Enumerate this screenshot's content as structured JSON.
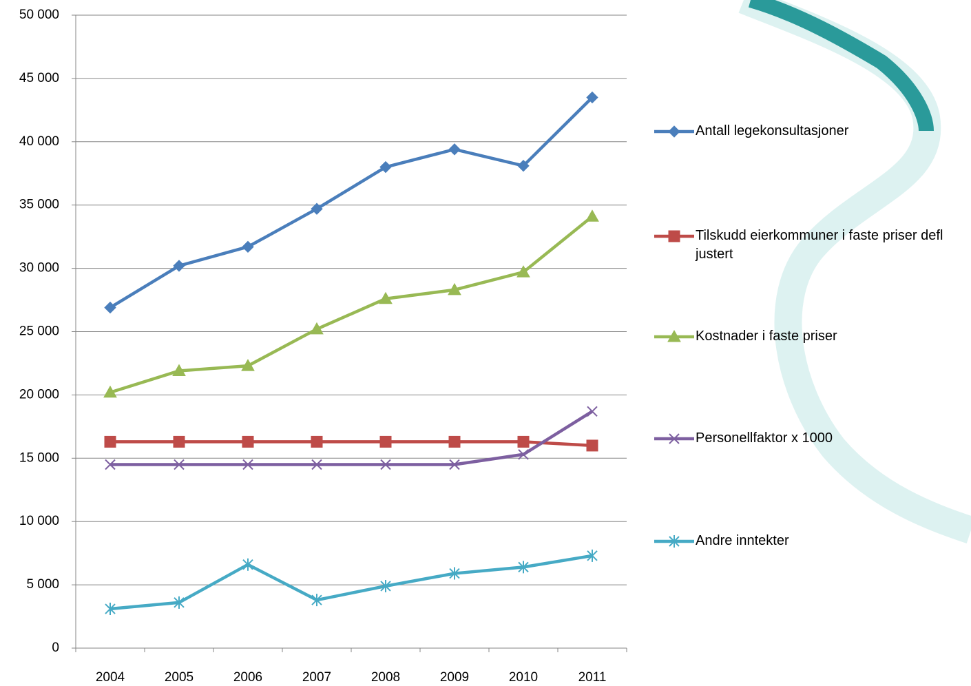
{
  "chart_data": {
    "type": "line",
    "categories": [
      "2004",
      "2005",
      "2006",
      "2007",
      "2008",
      "2009",
      "2010",
      "2011"
    ],
    "series": [
      {
        "name": "Antall legekonsultasjoner",
        "color": "#4a7ebb",
        "marker": "diamond",
        "values": [
          26900,
          30200,
          31700,
          34700,
          38000,
          39400,
          38100,
          43500
        ]
      },
      {
        "name": "Tilskudd eierkommuner i faste priser defl justert",
        "color": "#be4b48",
        "marker": "square",
        "values": [
          16300,
          16300,
          16300,
          16300,
          16300,
          16300,
          16300,
          16000
        ]
      },
      {
        "name": "Kostnader i faste priser",
        "color": "#98b954",
        "marker": "triangle",
        "values": [
          20200,
          21900,
          22300,
          25200,
          27600,
          28300,
          29700,
          34100
        ]
      },
      {
        "name": "Personellfaktor x 1000",
        "color": "#7d5fa0",
        "marker": "x",
        "values": [
          14500,
          14500,
          14500,
          14500,
          14500,
          14500,
          15300,
          18700
        ]
      },
      {
        "name": "Andre inntekter",
        "color": "#46aac5",
        "marker": "asterisk",
        "values": [
          3100,
          3600,
          6600,
          3800,
          4900,
          5900,
          6400,
          7300
        ]
      }
    ],
    "ylim": [
      0,
      50000
    ],
    "yticks": [
      0,
      {
        "value": 5000,
        "label": "5 000"
      },
      {
        "value": 10000,
        "label": "10 000"
      },
      {
        "value": 15000,
        "label": "15 000"
      },
      {
        "value": 20000,
        "label": "20 000"
      },
      {
        "value": 25000,
        "label": "25 000"
      },
      {
        "value": 30000,
        "label": "30 000"
      },
      {
        "value": 35000,
        "label": "35 000"
      },
      {
        "value": 40000,
        "label": "40 000"
      },
      {
        "value": 45000,
        "label": "45 000"
      },
      {
        "value": 50000,
        "label": "50 000"
      }
    ],
    "grid": true,
    "legend": "right"
  }
}
